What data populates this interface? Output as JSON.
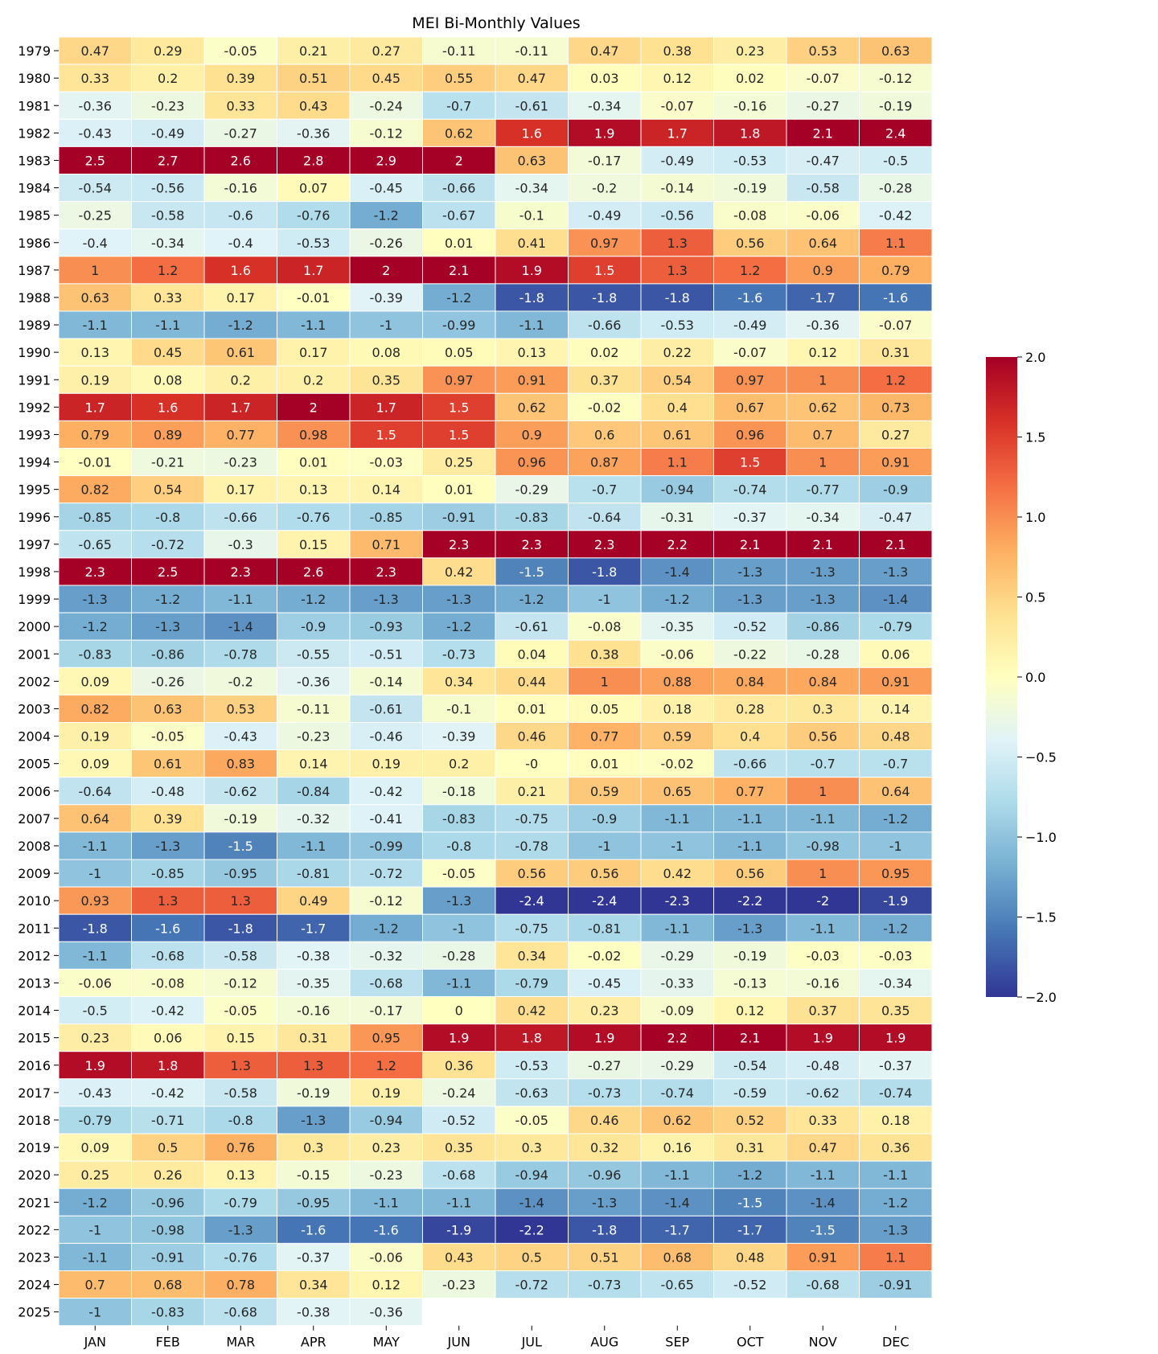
{
  "chart_data": {
    "type": "heatmap",
    "title": "MEI Bi-Monthly Values",
    "xlabel": "",
    "ylabel": "",
    "columns": [
      "JAN",
      "FEB",
      "MAR",
      "APR",
      "MAY",
      "JUN",
      "JUL",
      "AUG",
      "SEP",
      "OCT",
      "NOV",
      "DEC"
    ],
    "rows": [
      "1979",
      "1980",
      "1981",
      "1982",
      "1983",
      "1984",
      "1985",
      "1986",
      "1987",
      "1988",
      "1989",
      "1990",
      "1991",
      "1992",
      "1993",
      "1994",
      "1995",
      "1996",
      "1997",
      "1998",
      "1999",
      "2000",
      "2001",
      "2002",
      "2003",
      "2004",
      "2005",
      "2006",
      "2007",
      "2008",
      "2009",
      "2010",
      "2011",
      "2012",
      "2013",
      "2014",
      "2015",
      "2016",
      "2017",
      "2018",
      "2019",
      "2020",
      "2021",
      "2022",
      "2023",
      "2024",
      "2025"
    ],
    "values": [
      [
        0.47,
        0.29,
        -0.05,
        0.21,
        0.27,
        -0.11,
        -0.11,
        0.47,
        0.38,
        0.23,
        0.53,
        0.63
      ],
      [
        0.33,
        0.2,
        0.39,
        0.51,
        0.45,
        0.55,
        0.47,
        0.03,
        0.12,
        0.02,
        -0.07,
        -0.12
      ],
      [
        -0.36,
        -0.23,
        0.33,
        0.43,
        -0.24,
        -0.7,
        -0.61,
        -0.34,
        -0.07,
        -0.16,
        -0.27,
        -0.19
      ],
      [
        -0.43,
        -0.49,
        -0.27,
        -0.36,
        -0.12,
        0.62,
        1.6,
        1.9,
        1.7,
        1.8,
        2.1,
        2.4
      ],
      [
        2.5,
        2.7,
        2.6,
        2.8,
        2.9,
        2,
        0.63,
        -0.17,
        -0.49,
        -0.53,
        -0.47,
        -0.5
      ],
      [
        -0.54,
        -0.56,
        -0.16,
        0.07,
        -0.45,
        -0.66,
        -0.34,
        -0.2,
        -0.14,
        -0.19,
        -0.58,
        -0.28
      ],
      [
        -0.25,
        -0.58,
        -0.6,
        -0.76,
        -1.2,
        -0.67,
        -0.1,
        -0.49,
        -0.56,
        -0.08,
        -0.06,
        -0.42
      ],
      [
        -0.4,
        -0.34,
        -0.4,
        -0.53,
        -0.26,
        0.01,
        0.41,
        0.97,
        1.3,
        0.56,
        0.64,
        1.1
      ],
      [
        1,
        1.2,
        1.6,
        1.7,
        2,
        2.1,
        1.9,
        1.5,
        1.3,
        1.2,
        0.9,
        0.79
      ],
      [
        0.63,
        0.33,
        0.17,
        -0.01,
        -0.39,
        -1.2,
        -1.8,
        -1.8,
        -1.8,
        -1.6,
        -1.7,
        -1.6
      ],
      [
        -1.1,
        -1.1,
        -1.2,
        -1.1,
        -1,
        -0.99,
        -1.1,
        -0.66,
        -0.53,
        -0.49,
        -0.36,
        -0.07
      ],
      [
        0.13,
        0.45,
        0.61,
        0.17,
        0.08,
        0.05,
        0.13,
        0.02,
        0.22,
        -0.07,
        0.12,
        0.31
      ],
      [
        0.19,
        0.08,
        0.2,
        0.2,
        0.35,
        0.97,
        0.91,
        0.37,
        0.54,
        0.97,
        1,
        1.2
      ],
      [
        1.7,
        1.6,
        1.7,
        2,
        1.7,
        1.5,
        0.62,
        -0.02,
        0.4,
        0.67,
        0.62,
        0.73
      ],
      [
        0.79,
        0.89,
        0.77,
        0.98,
        1.5,
        1.5,
        0.9,
        0.6,
        0.61,
        0.96,
        0.7,
        0.27
      ],
      [
        -0.01,
        -0.21,
        -0.23,
        0.01,
        -0.03,
        0.25,
        0.96,
        0.87,
        1.1,
        1.5,
        1,
        0.91
      ],
      [
        0.82,
        0.54,
        0.17,
        0.13,
        0.14,
        0.01,
        -0.29,
        -0.7,
        -0.94,
        -0.74,
        -0.77,
        -0.9
      ],
      [
        -0.85,
        -0.8,
        -0.66,
        -0.76,
        -0.85,
        -0.91,
        -0.83,
        -0.64,
        -0.31,
        -0.37,
        -0.34,
        -0.47
      ],
      [
        -0.65,
        -0.72,
        -0.3,
        0.15,
        0.71,
        2.3,
        2.3,
        2.3,
        2.2,
        2.1,
        2.1,
        2.1
      ],
      [
        2.3,
        2.5,
        2.3,
        2.6,
        2.3,
        0.42,
        -1.5,
        -1.8,
        -1.4,
        -1.3,
        -1.3,
        -1.3
      ],
      [
        -1.3,
        -1.2,
        -1.1,
        -1.2,
        -1.3,
        -1.3,
        -1.2,
        -1,
        -1.2,
        -1.3,
        -1.3,
        -1.4
      ],
      [
        -1.2,
        -1.3,
        -1.4,
        -0.9,
        -0.93,
        -1.2,
        -0.61,
        -0.08,
        -0.35,
        -0.52,
        -0.86,
        -0.79
      ],
      [
        -0.83,
        -0.86,
        -0.78,
        -0.55,
        -0.51,
        -0.73,
        0.04,
        0.38,
        -0.06,
        -0.22,
        -0.28,
        0.06
      ],
      [
        0.09,
        -0.26,
        -0.2,
        -0.36,
        -0.14,
        0.34,
        0.44,
        1,
        0.88,
        0.84,
        0.84,
        0.91
      ],
      [
        0.82,
        0.63,
        0.53,
        -0.11,
        -0.61,
        -0.1,
        0.01,
        0.05,
        0.18,
        0.28,
        0.3,
        0.14
      ],
      [
        0.19,
        -0.05,
        -0.43,
        -0.23,
        -0.46,
        -0.39,
        0.46,
        0.77,
        0.59,
        0.4,
        0.56,
        0.48
      ],
      [
        0.09,
        0.61,
        0.83,
        0.14,
        0.19,
        0.2,
        "-0",
        0.01,
        -0.02,
        -0.66,
        -0.7,
        -0.7
      ],
      [
        -0.64,
        -0.48,
        -0.62,
        -0.84,
        -0.42,
        -0.18,
        0.21,
        0.59,
        0.65,
        0.77,
        1,
        0.64
      ],
      [
        0.64,
        0.39,
        -0.19,
        -0.32,
        -0.41,
        -0.83,
        -0.75,
        -0.9,
        -1.1,
        -1.1,
        -1.1,
        -1.2
      ],
      [
        -1.1,
        -1.3,
        -1.5,
        -1.1,
        -0.99,
        -0.8,
        -0.78,
        -1,
        -1,
        -1.1,
        -0.98,
        -1
      ],
      [
        -1,
        -0.85,
        -0.95,
        -0.81,
        -0.72,
        -0.05,
        0.56,
        0.56,
        0.42,
        0.56,
        1,
        0.95
      ],
      [
        0.93,
        1.3,
        1.3,
        0.49,
        -0.12,
        -1.3,
        -2.4,
        -2.4,
        -2.3,
        -2.2,
        -2,
        -1.9
      ],
      [
        -1.8,
        -1.6,
        -1.8,
        -1.7,
        -1.2,
        -1,
        -0.75,
        -0.81,
        -1.1,
        -1.3,
        -1.1,
        -1.2
      ],
      [
        -1.1,
        -0.68,
        -0.58,
        -0.38,
        -0.32,
        -0.28,
        0.34,
        -0.02,
        -0.29,
        -0.19,
        -0.03,
        -0.03
      ],
      [
        -0.06,
        -0.08,
        -0.12,
        -0.35,
        -0.68,
        -1.1,
        -0.79,
        -0.45,
        -0.33,
        -0.13,
        -0.16,
        -0.34
      ],
      [
        -0.5,
        -0.42,
        -0.05,
        -0.16,
        -0.17,
        0,
        0.42,
        0.23,
        -0.09,
        0.12,
        0.37,
        0.35
      ],
      [
        0.23,
        0.06,
        0.15,
        0.31,
        0.95,
        1.9,
        1.8,
        1.9,
        2.2,
        2.1,
        1.9,
        1.9
      ],
      [
        1.9,
        1.8,
        1.3,
        1.3,
        1.2,
        0.36,
        -0.53,
        -0.27,
        -0.29,
        -0.54,
        -0.48,
        -0.37
      ],
      [
        -0.43,
        -0.42,
        -0.58,
        -0.19,
        0.19,
        -0.24,
        -0.63,
        -0.73,
        -0.74,
        -0.59,
        -0.62,
        -0.74
      ],
      [
        -0.79,
        -0.71,
        -0.8,
        -1.3,
        -0.94,
        -0.52,
        -0.05,
        0.46,
        0.62,
        0.52,
        0.33,
        0.18
      ],
      [
        0.09,
        0.5,
        0.76,
        0.3,
        0.23,
        0.35,
        0.3,
        0.32,
        0.16,
        0.31,
        0.47,
        0.36
      ],
      [
        0.25,
        0.26,
        0.13,
        -0.15,
        -0.23,
        -0.68,
        -0.94,
        -0.96,
        -1.1,
        -1.2,
        -1.1,
        -1.1
      ],
      [
        -1.2,
        -0.96,
        -0.79,
        -0.95,
        -1.1,
        -1.1,
        -1.4,
        -1.3,
        -1.4,
        -1.5,
        -1.4,
        -1.2
      ],
      [
        -1,
        -0.98,
        -1.3,
        -1.6,
        -1.6,
        -1.9,
        -2.2,
        -1.8,
        -1.7,
        -1.7,
        -1.5,
        -1.3
      ],
      [
        -1.1,
        -0.91,
        -0.76,
        -0.37,
        -0.06,
        0.43,
        0.5,
        0.51,
        0.68,
        0.48,
        0.91,
        1.1
      ],
      [
        0.7,
        0.68,
        0.78,
        0.34,
        0.12,
        -0.23,
        -0.72,
        -0.73,
        -0.65,
        -0.52,
        -0.68,
        -0.91
      ],
      [
        -1,
        -0.83,
        -0.68,
        -0.38,
        -0.36,
        null,
        null,
        null,
        null,
        null,
        null,
        null
      ]
    ],
    "colorscale": {
      "name": "RdYlBu_r",
      "vmin": -2.0,
      "vmax": 2.0,
      "ticks": [
        "2.0",
        "1.5",
        "1.0",
        "0.5",
        "0.0",
        "−0.5",
        "−1.0",
        "−1.5",
        "−2.0"
      ],
      "stops": [
        "#313695",
        "#4575b4",
        "#74add1",
        "#abd9e9",
        "#e0f3f8",
        "#ffffbf",
        "#fee090",
        "#fdae61",
        "#f46d43",
        "#d73027",
        "#a50026"
      ]
    },
    "legend": "colorbar-right",
    "grid": false
  }
}
